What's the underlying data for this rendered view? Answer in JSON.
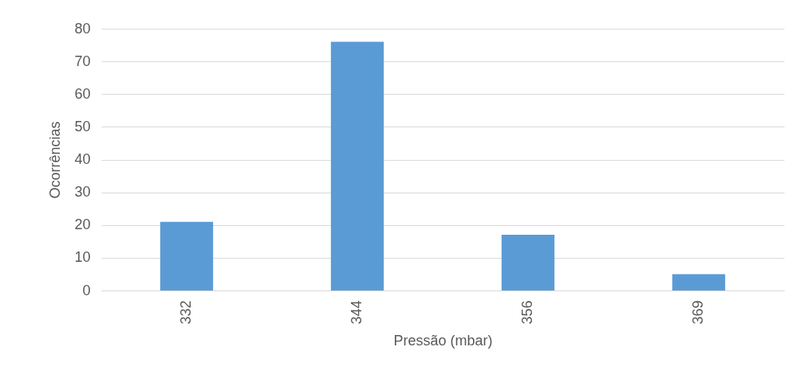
{
  "chart_data": {
    "type": "bar",
    "xlabel": "Pressão (mbar)",
    "ylabel": "Ocorrências",
    "categories": [
      "332",
      "344",
      "356",
      "369"
    ],
    "values": [
      21,
      76,
      17,
      5
    ],
    "color": "#5b9bd5",
    "ylim": [
      0,
      80
    ],
    "yticks": [
      0,
      10,
      20,
      30,
      40,
      50,
      60,
      70,
      80
    ],
    "grid": "y"
  }
}
